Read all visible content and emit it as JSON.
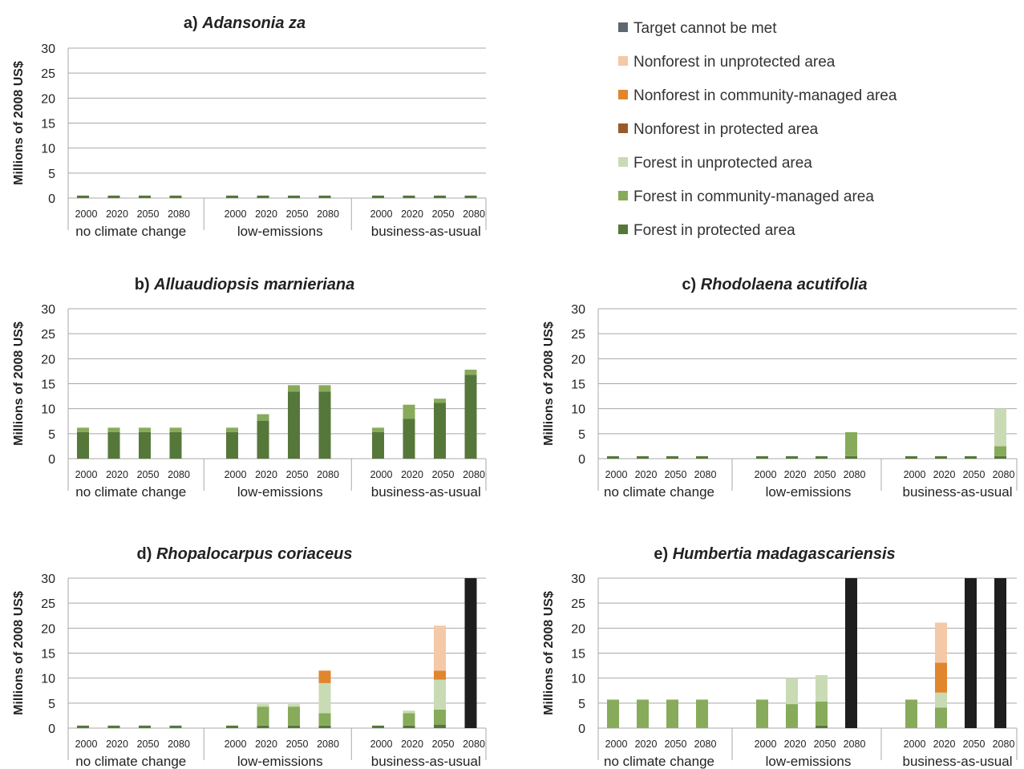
{
  "legend": {
    "items": [
      {
        "key": "target",
        "label": "Target cannot be met",
        "color": "#5f6770"
      },
      {
        "key": "nf_unprot",
        "label": "Nonforest in unprotected area",
        "color": "#f3c9a8"
      },
      {
        "key": "nf_comm",
        "label": "Nonforest in community-managed area",
        "color": "#e0862e"
      },
      {
        "key": "nf_prot",
        "label": "Nonforest in protected area",
        "color": "#9a5a2a"
      },
      {
        "key": "f_unprot",
        "label": "Forest in unprotected area",
        "color": "#c9dbb5"
      },
      {
        "key": "f_comm",
        "label": "Forest in community-managed area",
        "color": "#87ab5a"
      },
      {
        "key": "f_prot",
        "label": "Forest in protected area",
        "color": "#56773a"
      }
    ]
  },
  "colors": {
    "target": "#1e1e1e",
    "nf_unprot": "#f3c9a8",
    "nf_comm": "#e0862e",
    "nf_prot": "#9a5a2a",
    "f_unprot": "#c9dbb5",
    "f_comm": "#87ab5a",
    "f_prot": "#56773a"
  },
  "chart_data": [
    {
      "type": "bar",
      "stacked": true,
      "title_prefix": "a) ",
      "title": "Adansonia za",
      "ylabel": "Millions of 2008 US$",
      "ylim": [
        0,
        30
      ],
      "yticks": [
        0,
        5,
        10,
        15,
        20,
        25,
        30
      ],
      "groups": [
        {
          "label": "no climate change",
          "years": [
            "2000",
            "2020",
            "2050",
            "2080"
          ],
          "bars": [
            {
              "f_prot": 0.5
            },
            {
              "f_prot": 0.5
            },
            {
              "f_prot": 0.5
            },
            {
              "f_prot": 0.5
            }
          ]
        },
        {
          "label": "low-emissions",
          "years": [
            "2000",
            "2020",
            "2050",
            "2080"
          ],
          "bars": [
            {
              "f_prot": 0.5
            },
            {
              "f_prot": 0.5
            },
            {
              "f_prot": 0.5
            },
            {
              "f_prot": 0.5
            }
          ]
        },
        {
          "label": "business-as-usual",
          "years": [
            "2000",
            "2020",
            "2050",
            "2080"
          ],
          "bars": [
            {
              "f_prot": 0.5
            },
            {
              "f_prot": 0.5
            },
            {
              "f_prot": 0.5
            },
            {
              "f_prot": 0.5
            }
          ]
        }
      ]
    },
    {
      "type": "bar",
      "stacked": true,
      "title_prefix": "b) ",
      "title": "Alluaudiopsis marnieriana",
      "ylabel": "Millions of 2008 US$",
      "ylim": [
        0,
        30
      ],
      "yticks": [
        0,
        5,
        10,
        15,
        20,
        25,
        30
      ],
      "groups": [
        {
          "label": "no climate change",
          "years": [
            "2000",
            "2020",
            "2050",
            "2080"
          ],
          "bars": [
            {
              "f_prot": 5.3,
              "f_comm": 0.9
            },
            {
              "f_prot": 5.3,
              "f_comm": 0.9
            },
            {
              "f_prot": 5.3,
              "f_comm": 0.9
            },
            {
              "f_prot": 5.3,
              "f_comm": 0.9
            }
          ]
        },
        {
          "label": "low-emissions",
          "years": [
            "2000",
            "2020",
            "2050",
            "2080"
          ],
          "bars": [
            {
              "f_prot": 5.3,
              "f_comm": 0.9
            },
            {
              "f_prot": 7.6,
              "f_comm": 1.3
            },
            {
              "f_prot": 13.4,
              "f_comm": 1.3
            },
            {
              "f_prot": 13.4,
              "f_comm": 1.3
            }
          ]
        },
        {
          "label": "business-as-usual",
          "years": [
            "2000",
            "2020",
            "2050",
            "2080"
          ],
          "bars": [
            {
              "f_prot": 5.3,
              "f_comm": 0.9
            },
            {
              "f_prot": 8.0,
              "f_comm": 2.8
            },
            {
              "f_prot": 11.2,
              "f_comm": 0.8
            },
            {
              "f_prot": 16.8,
              "f_comm": 1.0
            }
          ]
        }
      ]
    },
    {
      "type": "bar",
      "stacked": true,
      "title_prefix": "c) ",
      "title": "Rhodolaena acutifolia",
      "ylabel": "Millions of 2008 US$",
      "ylim": [
        0,
        30
      ],
      "yticks": [
        0,
        5,
        10,
        15,
        20,
        25,
        30
      ],
      "groups": [
        {
          "label": "no climate change",
          "years": [
            "2000",
            "2020",
            "2050",
            "2080"
          ],
          "bars": [
            {
              "f_prot": 0.5
            },
            {
              "f_prot": 0.5
            },
            {
              "f_prot": 0.5
            },
            {
              "f_prot": 0.5
            }
          ]
        },
        {
          "label": "low-emissions",
          "years": [
            "2000",
            "2020",
            "2050",
            "2080"
          ],
          "bars": [
            {
              "f_prot": 0.5
            },
            {
              "f_prot": 0.5
            },
            {
              "f_prot": 0.5
            },
            {
              "f_prot": 0.5,
              "f_comm": 4.8
            }
          ]
        },
        {
          "label": "business-as-usual",
          "years": [
            "2000",
            "2020",
            "2050",
            "2080"
          ],
          "bars": [
            {
              "f_prot": 0.5
            },
            {
              "f_prot": 0.5
            },
            {
              "f_prot": 0.5
            },
            {
              "f_prot": 0.5,
              "f_comm": 2.0,
              "f_unprot": 7.5
            }
          ]
        }
      ]
    },
    {
      "type": "bar",
      "stacked": true,
      "title_prefix": "d) ",
      "title": "Rhopalocarpus coriaceus",
      "ylabel": "Millions of 2008 US$",
      "ylim": [
        0,
        30
      ],
      "yticks": [
        0,
        5,
        10,
        15,
        20,
        25,
        30
      ],
      "groups": [
        {
          "label": "no climate change",
          "years": [
            "2000",
            "2020",
            "2050",
            "2080"
          ],
          "bars": [
            {
              "f_prot": 0.5
            },
            {
              "f_prot": 0.5
            },
            {
              "f_prot": 0.5
            },
            {
              "f_prot": 0.5
            }
          ]
        },
        {
          "label": "low-emissions",
          "years": [
            "2000",
            "2020",
            "2050",
            "2080"
          ],
          "bars": [
            {
              "f_prot": 0.5
            },
            {
              "f_prot": 0.5,
              "f_comm": 3.8,
              "f_unprot": 0.5
            },
            {
              "f_prot": 0.5,
              "f_comm": 3.8,
              "f_unprot": 0.5
            },
            {
              "f_prot": 0.5,
              "f_comm": 2.5,
              "f_unprot": 6.0,
              "nf_comm": 2.5
            }
          ]
        },
        {
          "label": "business-as-usual",
          "years": [
            "2000",
            "2020",
            "2050",
            "2080"
          ],
          "bars": [
            {
              "f_prot": 0.5
            },
            {
              "f_prot": 0.5,
              "f_comm": 2.5,
              "f_unprot": 0.5
            },
            {
              "f_prot": 0.7,
              "f_comm": 3.0,
              "f_unprot": 6.0,
              "nf_comm": 1.8,
              "nf_unprot": 9.0
            },
            {
              "target": 30
            }
          ]
        }
      ]
    },
    {
      "type": "bar",
      "stacked": true,
      "title_prefix": "e) ",
      "title": "Humbertia madagascariensis",
      "ylabel": "Millions of 2008 US$",
      "ylim": [
        0,
        30
      ],
      "yticks": [
        0,
        5,
        10,
        15,
        20,
        25,
        30
      ],
      "groups": [
        {
          "label": "no climate change",
          "years": [
            "2000",
            "2020",
            "2050",
            "2080"
          ],
          "bars": [
            {
              "f_comm": 5.7
            },
            {
              "f_comm": 5.7
            },
            {
              "f_comm": 5.7
            },
            {
              "f_comm": 5.7
            }
          ]
        },
        {
          "label": "low-emissions",
          "years": [
            "2000",
            "2020",
            "2050",
            "2080"
          ],
          "bars": [
            {
              "f_comm": 5.7
            },
            {
              "f_comm": 4.8,
              "f_unprot": 5.2
            },
            {
              "f_prot": 0.5,
              "f_comm": 4.8,
              "f_unprot": 5.3
            },
            {
              "target": 30
            }
          ]
        },
        {
          "label": "business-as-usual",
          "years": [
            "2000",
            "2020",
            "2050",
            "2080"
          ],
          "bars": [
            {
              "f_comm": 5.7
            },
            {
              "f_comm": 4.1,
              "f_unprot": 3.0,
              "nf_comm": 6.0,
              "nf_unprot": 8.0
            },
            {
              "target": 30
            },
            {
              "target": 30
            }
          ]
        }
      ]
    }
  ]
}
